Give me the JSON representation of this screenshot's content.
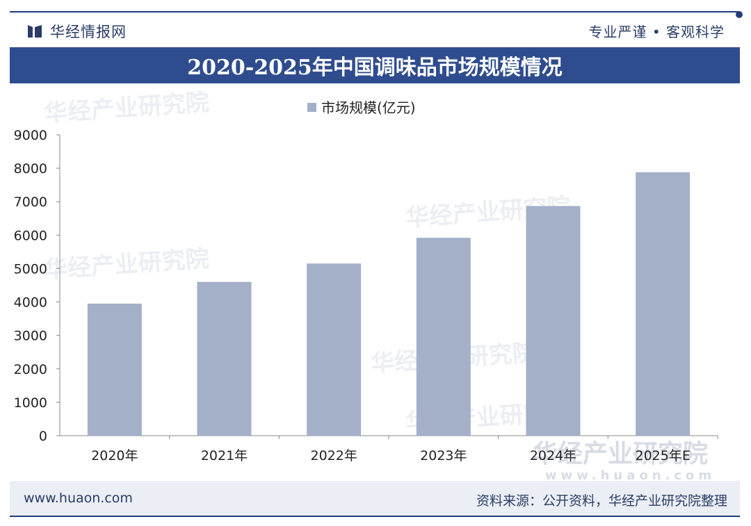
{
  "header": {
    "brand": "华经情报网",
    "slogan": "专业严谨 • 客观科学"
  },
  "chart_data": {
    "type": "bar",
    "title": "2020-2025年中国调味品市场规模情况",
    "categories": [
      "2020年",
      "2021年",
      "2022年",
      "2023年",
      "2024年",
      "2025年E"
    ],
    "series": [
      {
        "name": "市场规模(亿元)",
        "values": [
          3950,
          4600,
          5150,
          5920,
          6870,
          7880
        ]
      }
    ],
    "ylim": [
      0,
      9000
    ],
    "yticks": [
      0,
      1000,
      2000,
      3000,
      4000,
      5000,
      6000,
      7000,
      8000,
      9000
    ],
    "xlabel": "",
    "ylabel": "",
    "legend": "top-center",
    "bar_color": "#a3b0c8",
    "grid": false
  },
  "watermark": {
    "text": "华经产业研究院",
    "site": "www.huaon.com"
  },
  "footer": {
    "site": "www.huaon.com",
    "source": "资料来源：公开资料，华经产业研究院整理"
  },
  "colors": {
    "title_bg": "#2f4c8e",
    "accent": "#1f3e7a",
    "bar": "#a3b0c8"
  }
}
